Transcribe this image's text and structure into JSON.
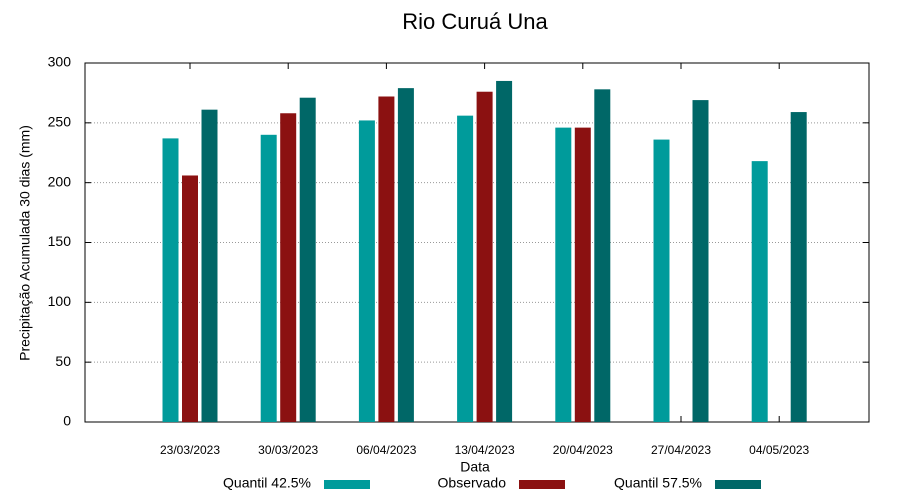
{
  "chart_data": {
    "type": "bar",
    "title": "Rio Curuá Una",
    "x_label": "Data",
    "y_label": "Precipitação Acumulada 30 dias (mm)",
    "categories": [
      "23/03/2023",
      "30/03/2023",
      "06/04/2023",
      "13/04/2023",
      "20/04/2023",
      "27/04/2023",
      "04/05/2023"
    ],
    "series": [
      {
        "name": "Quantil 42.5%",
        "color": "#009b9b",
        "values": [
          237,
          240,
          252,
          256,
          246,
          236,
          218
        ]
      },
      {
        "name": "Observado",
        "color": "#8b1111",
        "values": [
          206,
          258,
          272,
          276,
          246,
          null,
          null
        ]
      },
      {
        "name": "Quantil 57.5%",
        "color": "#006767",
        "values": [
          261,
          271,
          279,
          285,
          278,
          269,
          259
        ]
      }
    ],
    "ylim": [
      0,
      300
    ],
    "yticks": [
      0,
      50,
      100,
      150,
      200,
      250,
      300
    ],
    "grid": true,
    "legend": "bottom"
  }
}
